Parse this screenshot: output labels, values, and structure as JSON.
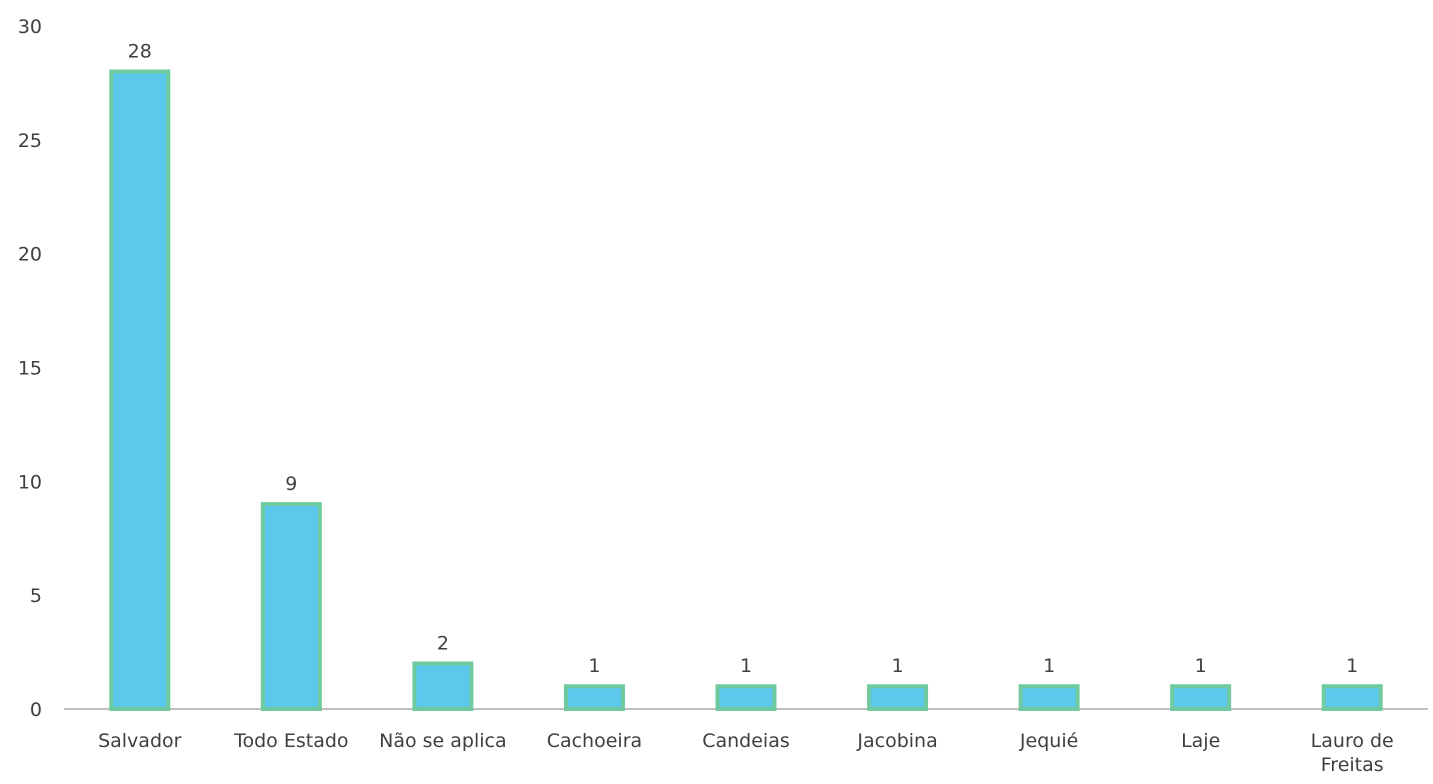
{
  "chart_data": {
    "type": "bar",
    "title": "",
    "xlabel": "",
    "ylabel": "",
    "categories": [
      "Salvador",
      "Todo Estado",
      "Não se aplica",
      "Cachoeira",
      "Candeias",
      "Jacobina",
      "Jequié",
      "Laje",
      "Lauro de Freitas"
    ],
    "values": [
      28,
      9,
      2,
      1,
      1,
      1,
      1,
      1,
      1
    ],
    "ylim": [
      0,
      30
    ],
    "yticks": [
      0,
      5,
      10,
      15,
      20,
      25,
      30
    ],
    "data_labels": true,
    "grid": false,
    "legend": "none",
    "colors": {
      "bar_fill": "#5BC8EC",
      "bar_border": "#6FCB9F",
      "axis": "#BFBFBF",
      "text": "#404040"
    }
  }
}
